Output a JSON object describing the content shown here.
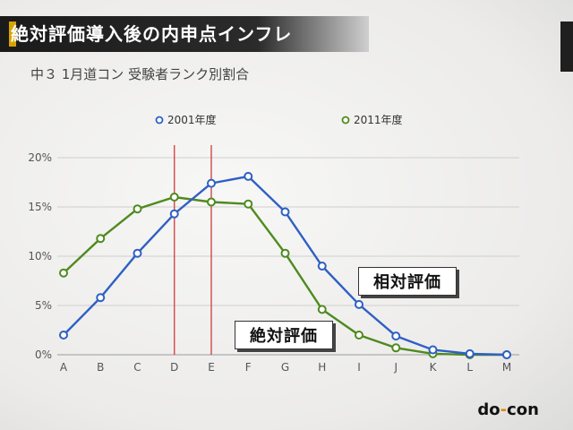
{
  "header": {
    "title": "絶対評価導入後の内申点インフレ"
  },
  "subtitle": "中３ 1月道コン 受験者ランク別割合",
  "annotations": {
    "relative": "相対評価",
    "absolute": "絶対評価"
  },
  "logo": {
    "prefix": "do",
    "suffix": "con",
    "separator": "-"
  },
  "colors": {
    "series_2001": "#2f5fc4",
    "series_2011": "#4f8a1e",
    "marker_lines": "#d23a3a"
  },
  "chart_data": {
    "type": "line",
    "categories": [
      "A",
      "B",
      "C",
      "D",
      "E",
      "F",
      "G",
      "H",
      "I",
      "J",
      "K",
      "L",
      "M"
    ],
    "yticks": [
      "0%",
      "5%",
      "10%",
      "15%",
      "20%"
    ],
    "ylim": [
      0,
      20
    ],
    "grid": "horizontal",
    "legend_position": "top",
    "markers_at": [
      "D",
      "E"
    ],
    "series": [
      {
        "name": "2001年度",
        "values": [
          2.0,
          5.8,
          10.3,
          14.3,
          17.4,
          18.1,
          14.5,
          9.0,
          5.1,
          1.9,
          0.5,
          0.1,
          0.0
        ]
      },
      {
        "name": "2011年度",
        "values": [
          8.3,
          11.8,
          14.8,
          16.0,
          15.5,
          15.3,
          10.3,
          4.6,
          2.0,
          0.7,
          0.1,
          0.0,
          0.0
        ]
      }
    ]
  }
}
